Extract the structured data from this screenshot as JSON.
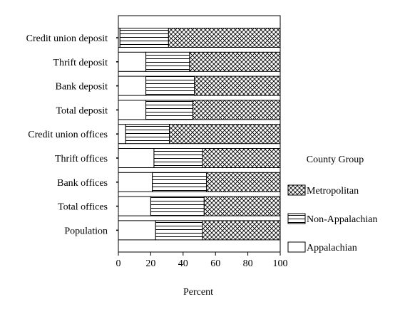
{
  "chart_data": {
    "type": "bar",
    "orientation": "horizontal",
    "stacked": true,
    "categories": [
      "Credit union deposit",
      "Thrift deposit",
      "Bank deposit",
      "Total deposit",
      "Credit union offices",
      "Thrift offices",
      "Bank offices",
      "Total offices",
      "Population"
    ],
    "series": [
      {
        "name": "Appalachian",
        "pattern": "blank",
        "values": [
          1,
          17,
          17,
          17,
          4.5,
          22,
          21,
          20,
          23
        ]
      },
      {
        "name": "Non-Appalachian",
        "pattern": "horizontal",
        "values": [
          30,
          27,
          30,
          29,
          27,
          30,
          33.5,
          33,
          29
        ]
      },
      {
        "name": "Metropolitan",
        "pattern": "crosshatch",
        "values": [
          69,
          56,
          53,
          54,
          68.5,
          48,
          45.5,
          47,
          48
        ]
      }
    ],
    "xlabel": "Percent",
    "xlim": [
      0,
      100
    ],
    "xticks": [
      0,
      20,
      40,
      60,
      80,
      100
    ],
    "legend": {
      "title": "County Group",
      "position": "right",
      "order": [
        "Metropolitan",
        "Non-Appalachian",
        "Appalachian"
      ]
    },
    "grid": false
  }
}
